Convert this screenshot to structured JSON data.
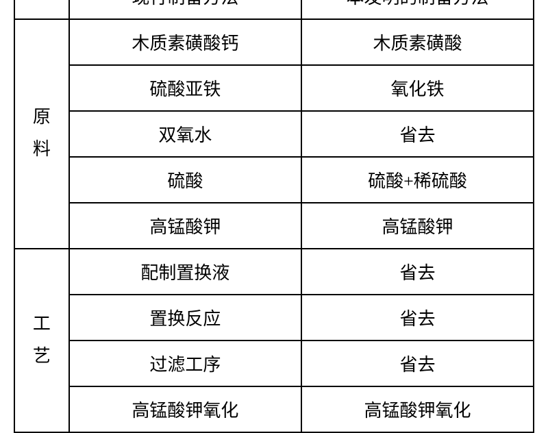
{
  "table": {
    "type": "table",
    "header": {
      "blank": "",
      "col1": "现行制备方法",
      "col2": "本发明的制备方法"
    },
    "sections": [
      {
        "label_line1": "原",
        "label_line2": "料",
        "rows": [
          {
            "c1": "木质素磺酸钙",
            "c2": "木质素磺酸"
          },
          {
            "c1": "硫酸亚铁",
            "c2": "氧化铁"
          },
          {
            "c1": "双氧水",
            "c2": "省去"
          },
          {
            "c1": "硫酸",
            "c2": "硫酸+稀硫酸"
          },
          {
            "c1": "高锰酸钾",
            "c2": "高锰酸钾"
          }
        ]
      },
      {
        "label_line1": "工",
        "label_line2": "艺",
        "rows": [
          {
            "c1": "配制置换液",
            "c2": "省去"
          },
          {
            "c1": "置换反应",
            "c2": "省去"
          },
          {
            "c1": "过滤工序",
            "c2": "省去"
          },
          {
            "c1": "高锰酸钾氧化",
            "c2": "高锰酸钾氧化"
          }
        ]
      }
    ],
    "border_color": "#000000",
    "background_color": "#ffffff",
    "text_color": "#000000",
    "font_size": 26,
    "cell_padding": 14
  }
}
